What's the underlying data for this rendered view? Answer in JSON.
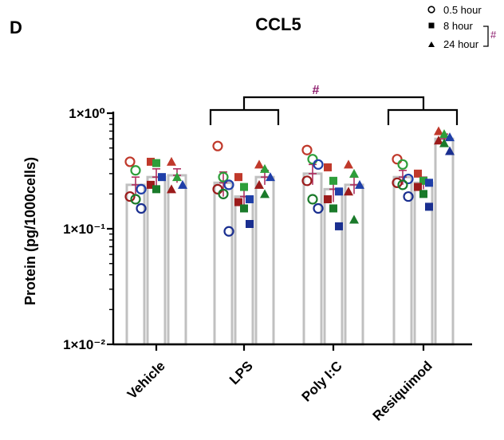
{
  "panel_letter": "D",
  "chart_data": {
    "type": "bar",
    "title": "CCL5",
    "ylabel": "Protein (pg/1000cells)",
    "xlabel": "",
    "yscale": "log",
    "ylim": [
      0.01,
      1
    ],
    "yticks": [
      {
        "value": 1,
        "label": "1×10⁰"
      },
      {
        "value": 0.1,
        "label": "1×10⁻¹"
      },
      {
        "value": 0.01,
        "label": "1×10⁻²"
      }
    ],
    "categories": [
      "Vehicle",
      "LPS",
      "Poly I:C",
      "Resiquimod"
    ],
    "series": [
      {
        "name": "0.5 hour",
        "marker": "circle",
        "values": [
          0.24,
          0.25,
          0.3,
          0.28
        ]
      },
      {
        "name": "8 hour",
        "marker": "square",
        "values": [
          0.28,
          0.19,
          0.22,
          0.25
        ]
      },
      {
        "name": "24 hour",
        "marker": "triangle",
        "values": [
          0.29,
          0.28,
          0.24,
          0.6
        ]
      }
    ],
    "points": [
      [
        [
          0.38,
          0.32,
          0.22,
          0.19,
          0.18,
          0.15
        ],
        [
          0.38,
          0.37,
          0.28,
          0.24,
          0.22
        ],
        [
          0.38,
          0.28,
          0.24,
          0.22
        ]
      ],
      [
        [
          0.52,
          0.28,
          0.24,
          0.22,
          0.2,
          0.095
        ],
        [
          0.28,
          0.23,
          0.18,
          0.17,
          0.15,
          0.11
        ],
        [
          0.36,
          0.33,
          0.28,
          0.24,
          0.2
        ]
      ],
      [
        [
          0.48,
          0.4,
          0.36,
          0.26,
          0.18,
          0.15
        ],
        [
          0.34,
          0.26,
          0.21,
          0.18,
          0.15,
          0.105
        ],
        [
          0.36,
          0.3,
          0.24,
          0.21,
          0.12
        ]
      ],
      [
        [
          0.4,
          0.36,
          0.27,
          0.25,
          0.24,
          0.19
        ],
        [
          0.3,
          0.26,
          0.25,
          0.23,
          0.2,
          0.155
        ],
        [
          0.7,
          0.66,
          0.62,
          0.58,
          0.55,
          0.47
        ]
      ]
    ],
    "error": [
      [
        0.04,
        0.05,
        0.04
      ],
      [
        0.06,
        0.03,
        0.04
      ],
      [
        0.06,
        0.05,
        0.04
      ],
      [
        0.04,
        0.03,
        0.06
      ]
    ],
    "colors": {
      "bar_fill": "#ffffff",
      "bar_stroke": "#c0c0c0",
      "sample_colors": [
        "#c0392b",
        "#2e9e3a",
        "#1f3fa8",
        "#9b1b1b",
        "#1a7a2a",
        "#1a2f90"
      ],
      "error_bar": "#b03060",
      "significance": "#8b1a6b"
    },
    "significance": {
      "symbol": "#",
      "between": [
        "LPS",
        "Resiquimod"
      ]
    },
    "legend": {
      "placement": "top-right",
      "bracket_symbol": "#"
    }
  }
}
